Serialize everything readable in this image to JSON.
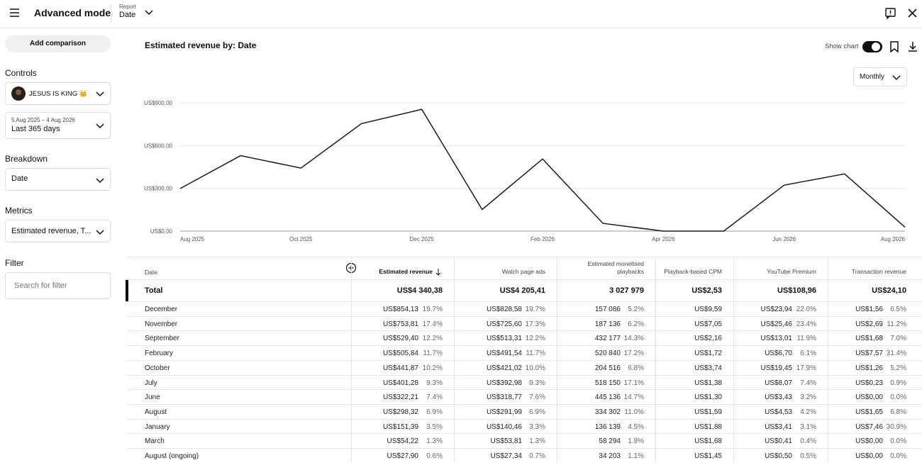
{
  "header": {
    "title": "Advanced mode",
    "report_label": "Report",
    "report_value": "Date"
  },
  "sidebar": {
    "add_comparison": "Add comparison",
    "controls_label": "Controls",
    "channel": "JESUS IS KING 👑",
    "date_range": "5 Aug 2025 – 4 Aug 2026",
    "date_preset": "Last 365 days",
    "breakdown_label": "Breakdown",
    "breakdown_value": "Date",
    "metrics_label": "Metrics",
    "metrics_value": "Estimated revenue, T...",
    "filter_label": "Filter",
    "filter_placeholder": "Search for filter"
  },
  "main": {
    "title": "Estimated revenue by: Date",
    "show_chart": "Show chart",
    "interval": "Monthly"
  },
  "chart_data": {
    "type": "line",
    "categories": [
      "Aug 2025",
      null,
      "Oct 2025",
      null,
      "Dec 2025",
      null,
      "Feb 2026",
      null,
      "Apr 2026",
      null,
      "Jun 2026",
      null,
      "Aug 2026"
    ],
    "values": [
      298.32,
      529.4,
      441.87,
      753.81,
      854.13,
      151.39,
      505.84,
      54.22,
      0,
      0,
      322.21,
      401.28,
      27.9
    ],
    "color": "#1a1a1a",
    "ylim": [
      0,
      900
    ],
    "yticks": [
      {
        "value": 0,
        "label": "US$0,00"
      },
      {
        "value": 300,
        "label": "US$300,00"
      },
      {
        "value": 600,
        "label": "US$600,00"
      },
      {
        "value": 900,
        "label": "US$900,00"
      }
    ],
    "grid": true
  },
  "table": {
    "headers": [
      "Date",
      "Estimated revenue",
      "Watch page ads",
      "Estimated monetised playbacks",
      "Playback-based CPM",
      "YouTube Premium",
      "Transaction revenue"
    ],
    "total": [
      "Total",
      "US$4 340,38",
      "US$4 205,41",
      "3 027 979",
      "US$2,53",
      "US$108,96",
      "US$24,10"
    ],
    "rows": [
      [
        "December",
        "US$854,13",
        "19.7%",
        "US$828,58",
        "19.7%",
        "157 086",
        "5.2%",
        "US$9,59",
        "US$23,94",
        "22.0%",
        "US$1,56",
        "6.5%"
      ],
      [
        "November",
        "US$753,81",
        "17.4%",
        "US$725,60",
        "17.3%",
        "187 136",
        "6.2%",
        "US$7,05",
        "US$25,46",
        "23.4%",
        "US$2,69",
        "11.2%"
      ],
      [
        "September",
        "US$529,40",
        "12.2%",
        "US$513,31",
        "12.2%",
        "432 177",
        "14.3%",
        "US$2,16",
        "US$13,01",
        "11.9%",
        "US$1,68",
        "7.0%"
      ],
      [
        "February",
        "US$505,84",
        "11.7%",
        "US$491,54",
        "11.7%",
        "520 840",
        "17.2%",
        "US$1,72",
        "US$6,70",
        "6.1%",
        "US$7,57",
        "31.4%"
      ],
      [
        "October",
        "US$441,87",
        "10.2%",
        "US$421,02",
        "10.0%",
        "204 516",
        "6.8%",
        "US$3,74",
        "US$19,45",
        "17.9%",
        "US$1,26",
        "5.2%"
      ],
      [
        "July",
        "US$401,28",
        "9.3%",
        "US$392,98",
        "9.3%",
        "518 150",
        "17.1%",
        "US$1,38",
        "US$8,07",
        "7.4%",
        "US$0,23",
        "0.9%"
      ],
      [
        "June",
        "US$322,21",
        "7.4%",
        "US$318,77",
        "7.6%",
        "445 136",
        "14.7%",
        "US$1,30",
        "US$3,43",
        "3.2%",
        "US$0,00",
        "0.0%"
      ],
      [
        "August",
        "US$298,32",
        "6.9%",
        "US$291,99",
        "6.9%",
        "334 302",
        "11.0%",
        "US$1,59",
        "US$4,53",
        "4.2%",
        "US$1,65",
        "6.8%"
      ],
      [
        "January",
        "US$151,39",
        "3.5%",
        "US$140,46",
        "3.3%",
        "136 139",
        "4.5%",
        "US$1,88",
        "US$3,41",
        "3.1%",
        "US$7,46",
        "30.9%"
      ],
      [
        "March",
        "US$54,22",
        "1.3%",
        "US$53,81",
        "1.3%",
        "58 294",
        "1.9%",
        "US$1,68",
        "US$0,41",
        "0.4%",
        "US$0,00",
        "0.0%"
      ],
      [
        "August (ongoing)",
        "US$27,90",
        "0.6%",
        "US$27,34",
        "0.7%",
        "34 203",
        "1.1%",
        "US$1,45",
        "US$0,50",
        "0.5%",
        "US$0,00",
        "0.0%"
      ]
    ]
  }
}
